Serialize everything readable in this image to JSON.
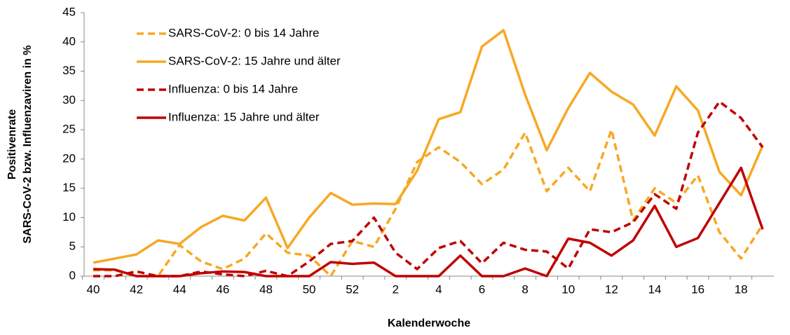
{
  "chart_data": {
    "type": "line",
    "x_label": "Kalenderwoche",
    "y_label": [
      "Positivenrate",
      "SARS-CoV-2 bzw. Influenzaviren in %"
    ],
    "categories": [
      40,
      null,
      42,
      null,
      44,
      null,
      46,
      null,
      48,
      null,
      50,
      null,
      52,
      null,
      2,
      null,
      4,
      null,
      6,
      null,
      8,
      null,
      10,
      null,
      12,
      null,
      14,
      null,
      16,
      null,
      18,
      null
    ],
    "ylim": [
      0,
      45
    ],
    "yticks": [
      0,
      5,
      10,
      15,
      20,
      25,
      30,
      35,
      40,
      45
    ],
    "legend": "top-left",
    "series": [
      {
        "name": "SARS-CoV-2: 0 bis 14 Jahre",
        "color": "#f7a823",
        "dashed": true,
        "values": [
          1.0,
          1.0,
          0.0,
          0.0,
          5.3,
          2.5,
          1.2,
          3.0,
          7.3,
          4.0,
          3.5,
          0.0,
          6.0,
          5.0,
          11.5,
          19.5,
          22.0,
          19.5,
          15.7,
          18.2,
          24.5,
          14.5,
          18.5,
          14.5,
          25.0,
          9.5,
          15.0,
          12.5,
          17.2,
          7.5,
          3.0,
          8.8
        ]
      },
      {
        "name": "SARS-CoV-2: 15 Jahre und älter",
        "color": "#f7a823",
        "dashed": false,
        "values": [
          2.3,
          3.0,
          3.7,
          6.1,
          5.5,
          8.4,
          10.3,
          9.5,
          13.4,
          4.8,
          10.0,
          14.2,
          12.2,
          12.4,
          12.3,
          18.0,
          26.8,
          28.0,
          39.2,
          42.0,
          31.0,
          21.5,
          28.7,
          34.7,
          31.5,
          29.3,
          24.0,
          32.4,
          28.3,
          17.8,
          13.8,
          22.3
        ]
      },
      {
        "name": "Influenza: 0 bis 14 Jahre",
        "color": "#c00000",
        "dashed": true,
        "values": [
          0.0,
          0.0,
          0.8,
          0.0,
          0.0,
          0.8,
          0.3,
          0.0,
          0.9,
          0.0,
          2.5,
          5.5,
          6.0,
          10.0,
          4.0,
          1.2,
          4.8,
          6.0,
          2.2,
          5.7,
          4.5,
          4.2,
          1.3,
          8.0,
          7.5,
          9.2,
          14.0,
          11.5,
          24.5,
          29.8,
          27.0,
          22.0
        ]
      },
      {
        "name": "Influenza: 15 Jahre und älter",
        "color": "#c00000",
        "dashed": false,
        "values": [
          1.2,
          1.1,
          0.0,
          0.0,
          0.0,
          0.5,
          0.8,
          0.7,
          0.0,
          0.0,
          0.0,
          2.4,
          2.1,
          2.3,
          0.0,
          0.0,
          0.0,
          3.5,
          0.0,
          0.0,
          1.3,
          0.0,
          6.4,
          5.7,
          3.5,
          6.1,
          12.0,
          5.0,
          6.5,
          12.5,
          18.5,
          8.0
        ]
      }
    ]
  }
}
